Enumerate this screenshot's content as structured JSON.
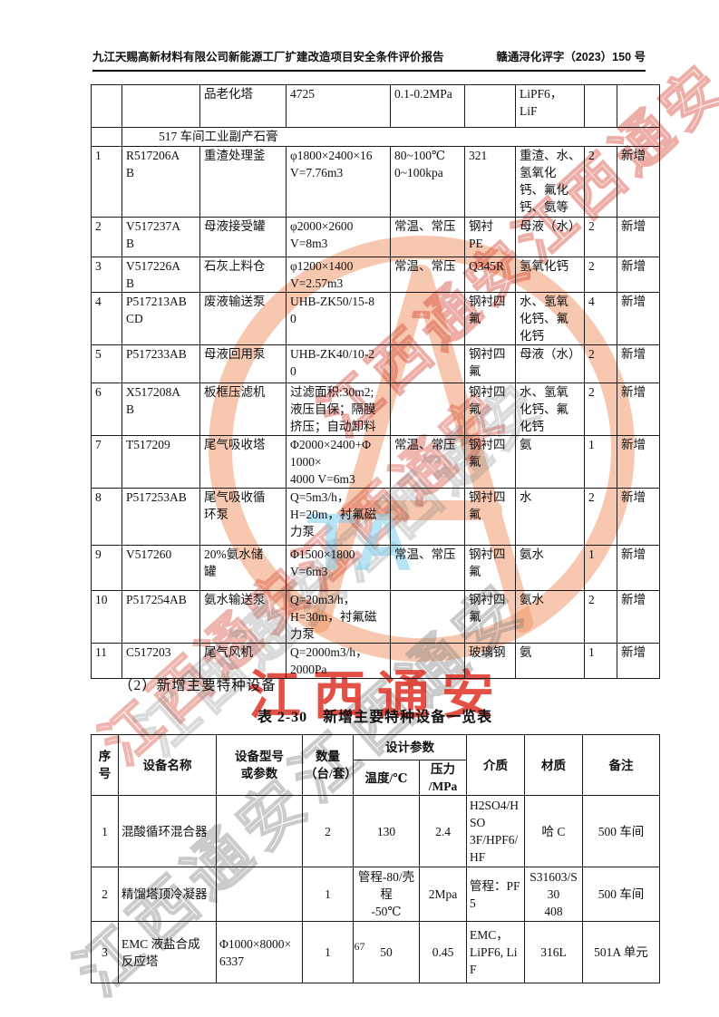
{
  "header": {
    "left": "九江天赐高新材料有限公司新能源工厂扩建改造项目安全条件评价报告",
    "right": "赣通浔化评字（2023）150 号"
  },
  "watermark": {
    "diagonal_text": "江西通安江西通安",
    "ta_text": "TA",
    "red_text": "江西通安",
    "red_color": "#de2a1c",
    "orange_color": "#ee8f5c",
    "blue_color": "#7dd0ee"
  },
  "table1": {
    "rows": [
      {
        "cells": [
          "",
          "",
          "品老化塔",
          "4725",
          "0.1-0.2MPa",
          "",
          "LiPF6，\nLiF",
          "",
          ""
        ]
      },
      {
        "section": "517 车间工业副产石膏"
      },
      {
        "cells": [
          "1",
          "R517206A\nB",
          "重渣处理釜",
          "φ1800×2400×16\nV=7.76m3",
          "80~100℃\n0~100kpa",
          "321",
          "重渣、水、\n氢氧化\n钙、氟化\n钙、氨等",
          "2",
          "新增"
        ]
      },
      {
        "cells": [
          "2",
          "V517237A\nB",
          "母液接受罐",
          "φ2000×2600\nV=8m3",
          "常温、常压",
          "钢衬\nPE",
          "母液（水）",
          "2",
          "新增"
        ]
      },
      {
        "cells": [
          "3",
          "V517226A\nB",
          "石灰上料仓",
          "φ1200×1400\nV=2.57m3",
          "常温、常压",
          "Q345R",
          "氢氧化钙",
          "2",
          "新增"
        ]
      },
      {
        "cells": [
          "4",
          "P517213AB\nCD",
          "废液输送泵",
          "UHB-ZK50/15-8\n0",
          "",
          "钢衬四\n氟",
          "水、氢氧\n化钙、氟\n化钙",
          "4",
          "新增"
        ]
      },
      {
        "cells": [
          "5",
          "P517233AB",
          "母液回用泵",
          "UHB-ZK40/10-2\n0",
          "",
          "钢衬四\n氟",
          "母液（水）",
          "2",
          "新增"
        ]
      },
      {
        "cells": [
          "6",
          "X517208A\nB",
          "板框压滤机",
          "过滤面积:30m2;\n液压自保；隔膜\n挤压；自动卸料",
          "",
          "钢衬四\n氟",
          "水、氢氧\n化钙、氟\n化钙",
          "2",
          "新增"
        ]
      },
      {
        "cells": [
          "7",
          "T517209",
          "尾气吸收塔",
          "Φ2000×2400+Φ\n1000×\n4000 V=6m3",
          "常温、常压",
          "钢衬四\n氟",
          "氨",
          "1",
          "新增"
        ]
      },
      {
        "cells": [
          "8",
          "P517253AB",
          "尾气吸收循\n环泵",
          "Q=5m3/h，\nH=20m，衬氟磁\n力泵",
          "",
          "钢衬四\n氟",
          "水",
          "2",
          "新增"
        ]
      },
      {
        "cells": [
          "9",
          "V517260",
          "20%氨水储\n罐",
          "Φ1500×1800\nV=6m3",
          "常温、常压",
          "钢衬四\n氟",
          "氨水",
          "1",
          "新增"
        ]
      },
      {
        "cells": [
          "10",
          "P517254AB",
          "氨水输送泵",
          "Q=20m3/h，\nH=30m，衬氟磁\n力泵",
          "",
          "钢衬四\n氟",
          "氨水",
          "2",
          "新增"
        ]
      },
      {
        "cells": [
          "11",
          "C517203",
          "尾气风机",
          "Q=2000m3/h，\n2000Pa",
          "",
          "玻璃钢",
          "氨",
          "1",
          "新增"
        ]
      }
    ]
  },
  "section_heading": "（2）新增主要特种设备",
  "table2_title": "表 2-30　新增主要特种设备一览表",
  "table2": {
    "header": {
      "seq": "序号",
      "name": "设备名称",
      "model": "设备型号\n或参数",
      "qty": "数量\n（台/套）",
      "design": "设计参数",
      "temp": "温度/℃",
      "press": "压力\n/MPa",
      "medium": "介质",
      "material": "材质",
      "remark": "备注"
    },
    "rows": [
      {
        "cells": [
          "1",
          "混酸循环混合器",
          "",
          "2",
          "130",
          "2.4",
          "H2SO4/HSO\n3F/HPF6/HF",
          "哈 C",
          "500 车间"
        ]
      },
      {
        "cells": [
          "2",
          "精馏塔顶冷凝器",
          "",
          "1",
          "管程-80/壳程\n-50℃",
          "2Mpa",
          "管程：PF5",
          "S31603/S30\n408",
          "500 车间"
        ]
      },
      {
        "cells": [
          "3",
          "EMC 液盐合成\n反应塔",
          "Φ1000×8000×\n6337",
          "1",
          "50",
          "0.45",
          "EMC，\nLiPF6, LiF",
          "316L",
          "501A 单元"
        ]
      }
    ]
  },
  "footer": {
    "page_number": "67"
  }
}
